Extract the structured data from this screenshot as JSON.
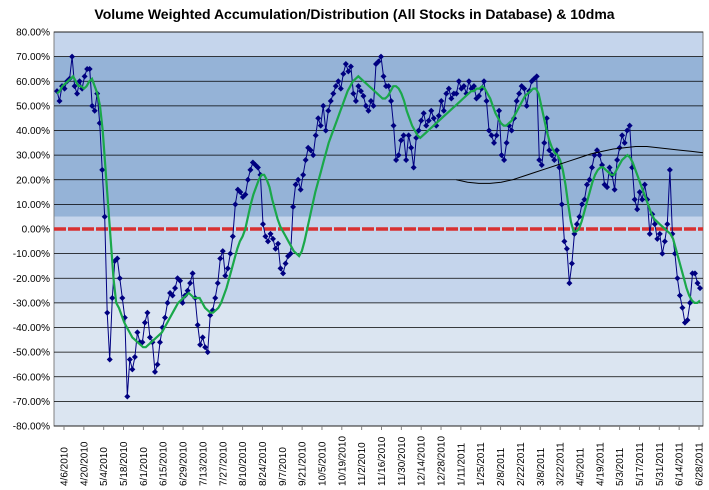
{
  "chart_data": {
    "type": "line",
    "title": "Volume Weighted Accumulation/Distribution  (All Stocks in Database) & 10dma",
    "xlabel": "",
    "ylabel": "",
    "ylim": [
      -80,
      80
    ],
    "y_ticks": [
      "80.00%",
      "70.00%",
      "60.00%",
      "50.00%",
      "40.00%",
      "30.00%",
      "20.00%",
      "10.00%",
      "0.00%",
      "-10.00%",
      "-20.00%",
      "-30.00%",
      "-40.00%",
      "-50.00%",
      "-60.00%",
      "-70.00%",
      "-80.00%"
    ],
    "x_ticks": [
      "4/6/2010",
      "4/20/2010",
      "5/4/2010",
      "5/18/2010",
      "6/1/2010",
      "6/15/2010",
      "6/29/2010",
      "7/13/2010",
      "7/27/2010",
      "8/10/2010",
      "8/24/2010",
      "9/7/2010",
      "9/21/2010",
      "10/5/2010",
      "10/19/2010",
      "11/2/2010",
      "11/16/2010",
      "11/30/2010",
      "12/14/2010",
      "12/28/2010",
      "1/11/2011",
      "1/25/2011",
      "2/8/2011",
      "2/22/2011",
      "3/8/2011",
      "3/22/2011",
      "4/5/2011",
      "4/19/2011",
      "5/3/2011",
      "5/17/2011",
      "5/31/2011",
      "6/14/2011",
      "6/28/2011"
    ],
    "grid": true,
    "colors": {
      "daily_series": "#000080",
      "ma_series": "#1aa84a",
      "trend_line": "#000000",
      "zero_line": "#d83030",
      "band_dark": "#95b3d7",
      "band_light": "#c5d5ec",
      "plot_background": "#dbe5f1"
    },
    "series": [
      {
        "name": "",
        "values": [
          56,
          52,
          58,
          57,
          60,
          61,
          70,
          58,
          55,
          60,
          57,
          62,
          65,
          65,
          50,
          48,
          55,
          43,
          24,
          5,
          -34,
          -53,
          -28,
          -13,
          -12,
          -20,
          -28,
          -36,
          -68,
          -53,
          -57,
          -52,
          -42,
          -46,
          -46,
          -38,
          -34,
          -44,
          -46,
          -58,
          -55,
          -46,
          -40,
          -36,
          -30,
          -26,
          -27,
          -24,
          -20,
          -21,
          -30,
          -27,
          -25,
          -22,
          -18,
          -28,
          -39,
          -47,
          -44,
          -48,
          -50,
          -35,
          -33,
          -28,
          -22,
          -12,
          -9,
          -19,
          -16,
          -10,
          -3,
          10,
          16,
          15,
          13,
          14,
          20,
          24,
          27,
          26,
          25,
          22,
          2,
          -3,
          -5,
          -2,
          -4,
          -8,
          -6,
          -16,
          -18,
          -14,
          -11,
          -10,
          9,
          18,
          20,
          16,
          22,
          28,
          33,
          32,
          30,
          38,
          45,
          42,
          50,
          40,
          48,
          52,
          55,
          58,
          60,
          57,
          63,
          67,
          64,
          66,
          55,
          52,
          58,
          56,
          54,
          50,
          48,
          52,
          50,
          67,
          68,
          70,
          62,
          58,
          58,
          52,
          42,
          28,
          30,
          36,
          38,
          28,
          38,
          33,
          25,
          37,
          40,
          44,
          47,
          42,
          44,
          48,
          45,
          42,
          46,
          52,
          48,
          55,
          57,
          53,
          55,
          55,
          60,
          57,
          58,
          55,
          60,
          57,
          58,
          53,
          54,
          57,
          60,
          52,
          40,
          38,
          35,
          38,
          48,
          30,
          28,
          35,
          42,
          40,
          45,
          52,
          55,
          58,
          57,
          50,
          56,
          60,
          61,
          62,
          28,
          26,
          35,
          45,
          32,
          30,
          28,
          32,
          25,
          10,
          -5,
          -8,
          -22,
          -14,
          -2,
          2,
          5,
          10,
          12,
          18,
          20,
          25,
          30,
          32,
          30,
          26,
          18,
          17,
          25,
          22,
          16,
          28,
          33,
          38,
          35,
          40,
          42,
          25,
          12,
          8,
          15,
          12,
          18,
          12,
          -2,
          6,
          2,
          -4,
          -2,
          -10,
          -5,
          2,
          24,
          -2,
          -10,
          -20,
          -27,
          -32,
          -38,
          -37,
          -30,
          -18,
          -18,
          -22,
          -24
        ]
      },
      {
        "name": "",
        "values": [
          55,
          56,
          58,
          59,
          60,
          61,
          62,
          60,
          58,
          58,
          57,
          58,
          60,
          61,
          58,
          55,
          50,
          40,
          25,
          10,
          -5,
          -20,
          -30,
          -32,
          -35,
          -38,
          -40,
          -42,
          -44,
          -45,
          -46,
          -47,
          -48,
          -48,
          -47,
          -46,
          -45,
          -44,
          -43,
          -42,
          -40,
          -38,
          -36,
          -34,
          -32,
          -30,
          -29,
          -28,
          -27,
          -26,
          -27,
          -28,
          -28,
          -28,
          -30,
          -32,
          -33,
          -34,
          -34,
          -33,
          -32,
          -30,
          -27,
          -24,
          -20,
          -16,
          -12,
          -8,
          -5,
          -3,
          0,
          5,
          10,
          14,
          17,
          20,
          22,
          22,
          20,
          17,
          12,
          8,
          4,
          1,
          -1,
          -3,
          -5,
          -7,
          -9,
          -10,
          -11,
          -9,
          -5,
          0,
          5,
          10,
          15,
          19,
          23,
          27,
          31,
          35,
          38,
          41,
          44,
          47,
          50,
          53,
          56,
          58,
          60,
          61,
          62,
          61,
          60,
          59,
          58,
          57,
          56,
          55,
          54,
          53,
          53,
          54,
          56,
          58,
          58,
          57,
          55,
          52,
          48,
          45,
          42,
          40,
          38,
          37,
          38,
          39,
          40,
          41,
          42,
          43,
          44,
          45,
          46,
          47,
          48,
          49,
          50,
          51,
          52,
          53,
          54,
          55,
          56,
          56,
          57,
          57,
          58,
          57,
          55,
          53,
          50,
          47,
          45,
          43,
          42,
          42,
          43,
          44,
          46,
          48,
          50,
          52,
          54,
          55,
          56,
          57,
          57,
          55,
          50,
          45,
          40,
          36,
          33,
          31,
          30,
          28,
          24,
          18,
          10,
          3,
          -1,
          -1,
          0,
          3,
          7,
          11,
          15,
          19,
          22,
          24,
          25,
          25,
          24,
          23,
          22,
          22,
          24,
          26,
          28,
          29,
          30,
          29,
          27,
          24,
          21,
          18,
          15,
          12,
          9,
          6,
          4,
          3,
          2,
          1,
          0,
          -1,
          -2,
          -4,
          -8,
          -12,
          -16,
          -20,
          -24,
          -27,
          -29,
          -30,
          -30,
          -29
        ]
      }
    ],
    "trend_line": {
      "x_start": 0.62,
      "x_end": 1.0,
      "values": [
        20,
        19,
        18.5,
        18.5,
        19,
        20,
        21.5,
        23,
        24.5,
        26,
        27.5,
        29,
        30.5,
        31.5,
        32.5,
        33,
        33.5,
        33.5,
        33,
        32.5,
        32,
        31.5,
        31
      ]
    }
  }
}
